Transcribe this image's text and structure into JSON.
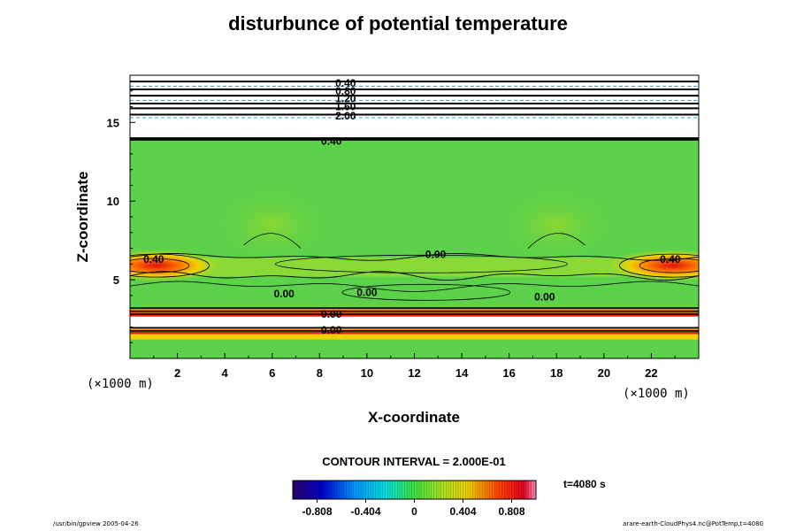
{
  "chart_data": {
    "type": "heatmap",
    "title": "disturbunce of potential temperature",
    "xlabel": "X-coordinate",
    "ylabel": "Z-coordinate",
    "x_unit": "(×1000 m)",
    "y_unit": "(×1000 m)",
    "xlim": [
      0,
      24
    ],
    "ylim": [
      0,
      18
    ],
    "x_ticks": [
      2,
      4,
      6,
      8,
      10,
      12,
      14,
      16,
      18,
      20,
      22
    ],
    "y_ticks": [
      5,
      10,
      15
    ],
    "contour_interval_label": "CONTOUR INTERVAL = 2.000E-01",
    "contour_labels": [
      {
        "text": "0.40",
        "x": 1.0,
        "y": 6.3
      },
      {
        "text": "0.40",
        "x": 22.8,
        "y": 6.3
      },
      {
        "text": "0.00",
        "x": 12.9,
        "y": 6.6
      },
      {
        "text": "0.00",
        "x": 6.5,
        "y": 4.1
      },
      {
        "text": "0.00",
        "x": 10.0,
        "y": 4.2
      },
      {
        "text": "0.00",
        "x": 17.5,
        "y": 3.9
      },
      {
        "text": "0.00",
        "x": 8.5,
        "y": 2.8
      },
      {
        "text": "0.40",
        "x": 8.5,
        "y": 13.8
      },
      {
        "text": "0.00",
        "x": 8.5,
        "y": 1.8
      }
    ],
    "colorbar": {
      "range": [
        -1.01,
        1.01
      ],
      "ticks": [
        -0.808,
        -0.404,
        0,
        0.404,
        0.808
      ],
      "tick_labels": [
        "-0.808",
        "-0.404",
        "0",
        "0.404",
        "0.808"
      ]
    },
    "time_label": "t=4080 s"
  },
  "footer": {
    "left": "/usr/bin/gpview 2005-04-26",
    "right": "arare-earth-CloudPhys4.nc@PotTemp,t=4080"
  },
  "colors": {
    "background_field": "#5cd14a",
    "warm_core": "#e02010",
    "cold_band": "#ffffff"
  }
}
